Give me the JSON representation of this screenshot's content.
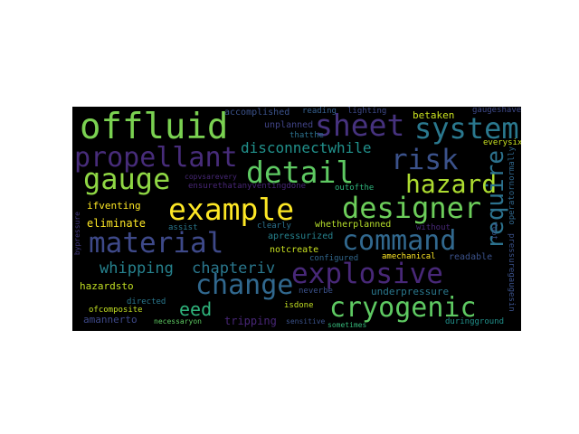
{
  "words": [
    {
      "text": "offluid",
      "color": "#7ad151"
    },
    {
      "text": "sheet",
      "color": "#46327e"
    },
    {
      "text": "system",
      "color": "#2a788e"
    },
    {
      "text": "propellant",
      "color": "#472c7a"
    },
    {
      "text": "gauge",
      "color": "#8fd744"
    },
    {
      "text": "detail",
      "color": "#5ec962"
    },
    {
      "text": "risk",
      "color": "#3b528b"
    },
    {
      "text": "hazard",
      "color": "#addc30"
    },
    {
      "text": "require",
      "color": "#2c728e"
    },
    {
      "text": "example",
      "color": "#fde725"
    },
    {
      "text": "designer",
      "color": "#6ccd5a"
    },
    {
      "text": "material",
      "color": "#3e4989"
    },
    {
      "text": "command",
      "color": "#31688e"
    },
    {
      "text": "explosive",
      "color": "#482878"
    },
    {
      "text": "whipping",
      "color": "#26828e"
    },
    {
      "text": "chapteriv",
      "color": "#2a788e"
    },
    {
      "text": "change",
      "color": "#31688e"
    },
    {
      "text": "eed",
      "color": "#2fb47c"
    },
    {
      "text": "cryogenic",
      "color": "#5ec962"
    },
    {
      "text": "disconnectwhile",
      "color": "#21918c"
    },
    {
      "text": "accomplished",
      "color": "#3b528b"
    },
    {
      "text": "unplanned",
      "color": "#414487"
    },
    {
      "text": "betaken",
      "color": "#c8e020"
    },
    {
      "text": "gaugeshave",
      "color": "#3e4989"
    },
    {
      "text": "ensurethatanyventingdone",
      "color": "#482677"
    },
    {
      "text": "ifventing",
      "color": "#fde725"
    },
    {
      "text": "eliminate",
      "color": "#fde725"
    },
    {
      "text": "apressurized",
      "color": "#26828e"
    },
    {
      "text": "notcreate",
      "color": "#c8e020"
    },
    {
      "text": "whetherplanned",
      "color": "#b5de2b"
    },
    {
      "text": "hazardsto",
      "color": "#c2df23"
    },
    {
      "text": "underpressure",
      "color": "#2a788e"
    },
    {
      "text": "amannerto",
      "color": "#3e4989"
    },
    {
      "text": "tripping",
      "color": "#482677"
    },
    {
      "text": "directed",
      "color": "#2a788e"
    },
    {
      "text": "ofcomposite",
      "color": "#c2df23"
    },
    {
      "text": "neverbe",
      "color": "#3b528b"
    },
    {
      "text": "isdone",
      "color": "#c2df23"
    },
    {
      "text": "configured",
      "color": "#31688e"
    },
    {
      "text": "amechanical",
      "color": "#fde725"
    },
    {
      "text": "readable",
      "color": "#3b528b"
    },
    {
      "text": "outofthe",
      "color": "#2fb47c"
    },
    {
      "text": "without",
      "color": "#482878"
    },
    {
      "text": "clearly",
      "color": "#2c728e"
    },
    {
      "text": "assist",
      "color": "#2a788e"
    },
    {
      "text": "necessaryon",
      "color": "#5ec962"
    },
    {
      "text": "sensitive",
      "color": "#3b528b"
    },
    {
      "text": "sometimes",
      "color": "#35b779"
    },
    {
      "text": "duringground",
      "color": "#21918c"
    },
    {
      "text": "pressuregaugesin",
      "color": "#3b528b"
    },
    {
      "text": "operatornormally",
      "color": "#31688e"
    },
    {
      "text": "everysix",
      "color": "#c8e020"
    },
    {
      "text": "bypressure",
      "color": "#443a83"
    },
    {
      "text": "thatthe",
      "color": "#2c728e"
    },
    {
      "text": "reading",
      "color": "#355f8d"
    },
    {
      "text": "lighting",
      "color": "#3e4989"
    },
    {
      "text": "copvsarevery",
      "color": "#482878"
    },
    {
      "text": "foot",
      "color": "#3b528b"
    }
  ]
}
